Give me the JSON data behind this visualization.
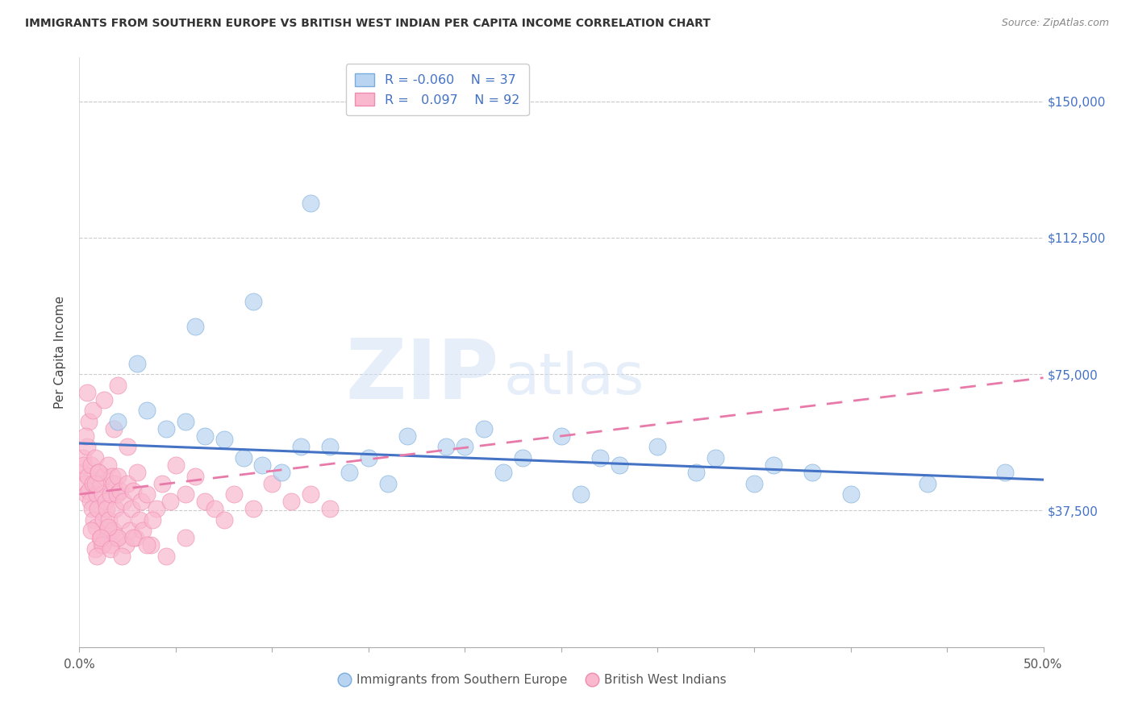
{
  "title": "IMMIGRANTS FROM SOUTHERN EUROPE VS BRITISH WEST INDIAN PER CAPITA INCOME CORRELATION CHART",
  "source": "Source: ZipAtlas.com",
  "ylabel": "Per Capita Income",
  "watermark_zip": "ZIP",
  "watermark_atlas": "atlas",
  "ytick_values": [
    0,
    37500,
    75000,
    112500,
    150000
  ],
  "ytick_labels": [
    "",
    "$37,500",
    "$75,000",
    "$112,500",
    "$150,000"
  ],
  "xlim": [
    0.0,
    50.0
  ],
  "ylim": [
    0,
    162000
  ],
  "blue_x": [
    2.0,
    3.5,
    4.5,
    5.5,
    6.5,
    7.5,
    8.5,
    9.5,
    10.5,
    11.5,
    13.0,
    15.0,
    17.0,
    19.0,
    21.0,
    23.0,
    25.0,
    27.0,
    30.0,
    33.0,
    36.0,
    14.0,
    20.0,
    28.0,
    35.0,
    40.0,
    44.0,
    38.0,
    32.0,
    12.0,
    9.0,
    6.0,
    3.0,
    22.0,
    16.0,
    26.0,
    48.0
  ],
  "blue_y": [
    62000,
    65000,
    60000,
    62000,
    58000,
    57000,
    52000,
    50000,
    48000,
    55000,
    55000,
    52000,
    58000,
    55000,
    60000,
    52000,
    58000,
    52000,
    55000,
    52000,
    50000,
    48000,
    55000,
    50000,
    45000,
    42000,
    45000,
    48000,
    48000,
    122000,
    95000,
    88000,
    78000,
    48000,
    45000,
    42000,
    48000
  ],
  "pink_x": [
    0.15,
    0.2,
    0.25,
    0.3,
    0.35,
    0.4,
    0.45,
    0.5,
    0.55,
    0.6,
    0.65,
    0.7,
    0.75,
    0.8,
    0.85,
    0.9,
    0.95,
    1.0,
    1.05,
    1.1,
    1.15,
    1.2,
    1.25,
    1.3,
    1.35,
    1.4,
    1.45,
    1.5,
    1.55,
    1.6,
    1.65,
    1.7,
    1.75,
    1.8,
    1.85,
    1.9,
    1.95,
    2.0,
    2.1,
    2.2,
    2.3,
    2.4,
    2.5,
    2.6,
    2.7,
    2.8,
    2.9,
    3.0,
    3.1,
    3.2,
    3.3,
    3.5,
    3.7,
    4.0,
    4.3,
    4.7,
    5.0,
    5.5,
    6.0,
    6.5,
    7.0,
    7.5,
    8.0,
    9.0,
    10.0,
    11.0,
    12.0,
    13.0,
    2.0,
    1.5,
    0.8,
    1.2,
    0.6,
    0.9,
    1.1,
    1.6,
    2.2,
    2.8,
    3.5,
    4.5,
    0.5,
    0.7,
    1.8,
    2.5,
    3.8,
    5.5,
    0.3,
    1.3,
    0.4,
    2.0,
    0.8,
    1.0
  ],
  "pink_y": [
    48000,
    52000,
    50000,
    45000,
    42000,
    55000,
    47000,
    43000,
    40000,
    50000,
    38000,
    45000,
    35000,
    52000,
    33000,
    42000,
    38000,
    48000,
    30000,
    45000,
    28000,
    42000,
    35000,
    47000,
    40000,
    38000,
    32000,
    50000,
    35000,
    42000,
    28000,
    47000,
    32000,
    45000,
    38000,
    30000,
    42000,
    47000,
    43000,
    35000,
    40000,
    28000,
    45000,
    32000,
    38000,
    43000,
    30000,
    48000,
    35000,
    40000,
    32000,
    42000,
    28000,
    38000,
    45000,
    40000,
    50000,
    42000,
    47000,
    40000,
    38000,
    35000,
    42000,
    38000,
    45000,
    40000,
    42000,
    38000,
    30000,
    33000,
    27000,
    28000,
    32000,
    25000,
    30000,
    27000,
    25000,
    30000,
    28000,
    25000,
    62000,
    65000,
    60000,
    55000,
    35000,
    30000,
    58000,
    68000,
    70000,
    72000,
    45000,
    48000
  ],
  "blue_trend_x": [
    0,
    50
  ],
  "blue_trend_y": [
    56000,
    46000
  ],
  "pink_trend_x": [
    0,
    50
  ],
  "pink_trend_y": [
    42000,
    74000
  ],
  "blue_color": "#b8d4f0",
  "blue_edge": "#7aacdc",
  "pink_color": "#f9b8ce",
  "pink_edge": "#f08ab0",
  "blue_trend_color": "#4472c4",
  "pink_trend_color": "#e87aaa",
  "grid_color": "#cccccc",
  "right_label_color": "#4472c4",
  "title_color": "#333333",
  "source_color": "#888888"
}
